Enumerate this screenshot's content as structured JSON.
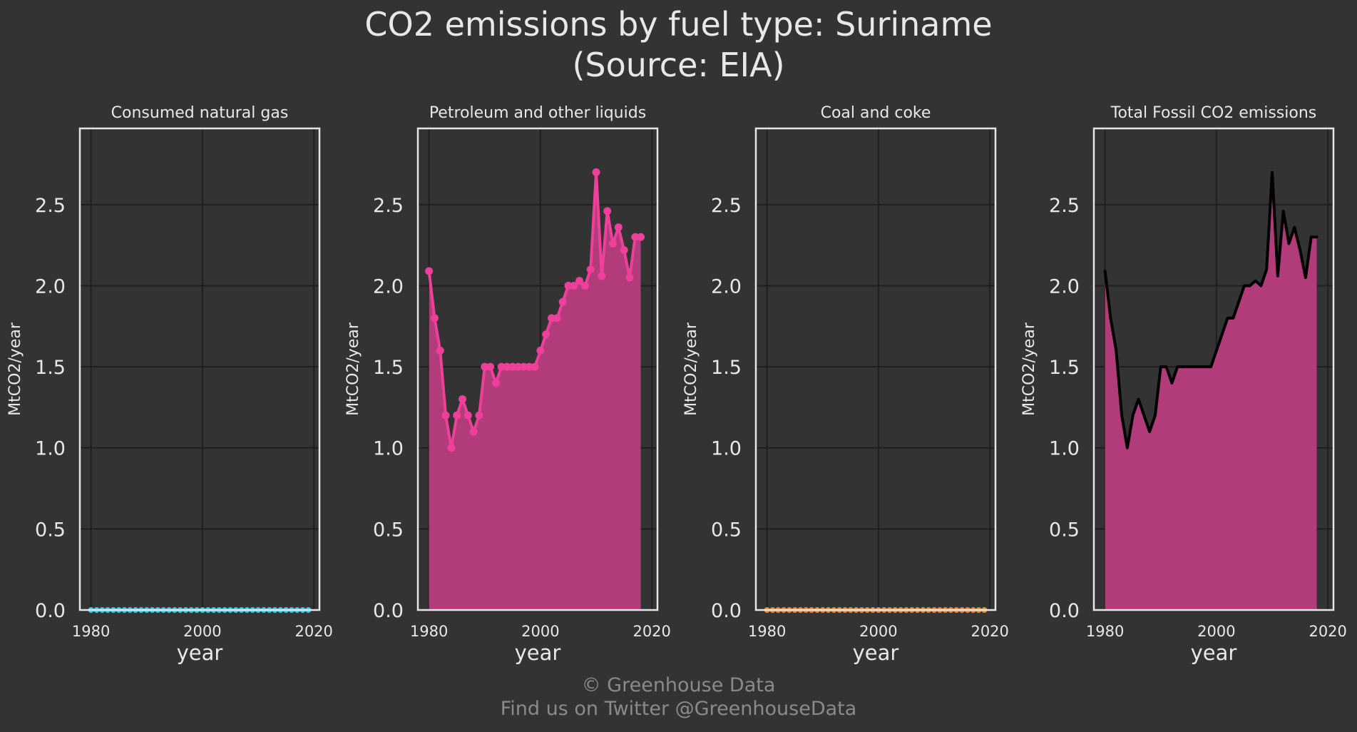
{
  "title_line1": "CO2 emissions by fuel type: Suriname",
  "title_line2": "(Source: EIA)",
  "footer_line1": "© Greenhouse Data",
  "footer_line2": "Find us on Twitter @GreenhouseData",
  "colors": {
    "background": "#333333",
    "grid": "#1f1f1f",
    "frame": "#e6e6e6",
    "text": "#e8e8e8",
    "natural_gas": "#33d1e0",
    "petroleum": "#ee3f9a",
    "petroleum_fill": "#b13c79",
    "coal": "#f08a3c",
    "total_line": "#000000",
    "total_fill": "#b13c79"
  },
  "chart_data": [
    {
      "type": "area",
      "title": "Consumed natural gas",
      "xlabel": "year",
      "ylabel": "MtCO2/year",
      "xlim": [
        1978,
        2021
      ],
      "ylim": [
        0,
        2.97
      ],
      "xticks": [
        1980,
        2000,
        2020
      ],
      "yticks": [
        0.0,
        0.5,
        1.0,
        1.5,
        2.0,
        2.5
      ],
      "grid": true,
      "markers": true,
      "x": [
        1980,
        1981,
        1982,
        1983,
        1984,
        1985,
        1986,
        1987,
        1988,
        1989,
        1990,
        1991,
        1992,
        1993,
        1994,
        1995,
        1996,
        1997,
        1998,
        1999,
        2000,
        2001,
        2002,
        2003,
        2004,
        2005,
        2006,
        2007,
        2008,
        2009,
        2010,
        2011,
        2012,
        2013,
        2014,
        2015,
        2016,
        2017,
        2018,
        2019
      ],
      "series": [
        {
          "values": [
            0,
            0,
            0,
            0,
            0,
            0,
            0,
            0,
            0,
            0,
            0,
            0,
            0,
            0,
            0,
            0,
            0,
            0,
            0,
            0,
            0,
            0,
            0,
            0,
            0,
            0,
            0,
            0,
            0,
            0,
            0,
            0,
            0,
            0,
            0,
            0,
            0,
            0,
            0,
            0
          ]
        }
      ]
    },
    {
      "type": "area",
      "title": "Petroleum and other liquids",
      "xlabel": "year",
      "ylabel": "MtCO2/year",
      "xlim": [
        1978,
        2021
      ],
      "ylim": [
        0,
        2.97
      ],
      "xticks": [
        1980,
        2000,
        2020
      ],
      "yticks": [
        0.0,
        0.5,
        1.0,
        1.5,
        2.0,
        2.5
      ],
      "grid": true,
      "markers": true,
      "x": [
        1980,
        1981,
        1982,
        1983,
        1984,
        1985,
        1986,
        1987,
        1988,
        1989,
        1990,
        1991,
        1992,
        1993,
        1994,
        1995,
        1996,
        1997,
        1998,
        1999,
        2000,
        2001,
        2002,
        2003,
        2004,
        2005,
        2006,
        2007,
        2008,
        2009,
        2010,
        2011,
        2012,
        2013,
        2014,
        2015,
        2016,
        2017,
        2018
      ],
      "series": [
        {
          "values": [
            2.09,
            1.8,
            1.6,
            1.2,
            1.0,
            1.2,
            1.3,
            1.2,
            1.1,
            1.2,
            1.5,
            1.5,
            1.4,
            1.5,
            1.5,
            1.5,
            1.5,
            1.5,
            1.5,
            1.5,
            1.6,
            1.7,
            1.8,
            1.8,
            1.9,
            2.0,
            2.0,
            2.03,
            2.0,
            2.1,
            2.7,
            2.06,
            2.46,
            2.26,
            2.36,
            2.22,
            2.05,
            2.3,
            2.3
          ]
        }
      ]
    },
    {
      "type": "area",
      "title": "Coal and coke",
      "xlabel": "year",
      "ylabel": "MtCO2/year",
      "xlim": [
        1978,
        2021
      ],
      "ylim": [
        0,
        2.97
      ],
      "xticks": [
        1980,
        2000,
        2020
      ],
      "yticks": [
        0.0,
        0.5,
        1.0,
        1.5,
        2.0,
        2.5
      ],
      "grid": true,
      "markers": true,
      "x": [
        1980,
        1981,
        1982,
        1983,
        1984,
        1985,
        1986,
        1987,
        1988,
        1989,
        1990,
        1991,
        1992,
        1993,
        1994,
        1995,
        1996,
        1997,
        1998,
        1999,
        2000,
        2001,
        2002,
        2003,
        2004,
        2005,
        2006,
        2007,
        2008,
        2009,
        2010,
        2011,
        2012,
        2013,
        2014,
        2015,
        2016,
        2017,
        2018,
        2019
      ],
      "series": [
        {
          "values": [
            0,
            0,
            0,
            0,
            0,
            0,
            0,
            0,
            0,
            0,
            0,
            0,
            0,
            0,
            0,
            0,
            0,
            0,
            0,
            0,
            0,
            0,
            0,
            0,
            0,
            0,
            0,
            0,
            0,
            0,
            0,
            0,
            0,
            0,
            0,
            0,
            0,
            0,
            0,
            0
          ]
        }
      ]
    },
    {
      "type": "area",
      "title": "Total Fossil CO2 emissions",
      "xlabel": "year",
      "ylabel": "MtCO2/year",
      "xlim": [
        1978,
        2021
      ],
      "ylim": [
        0,
        2.97
      ],
      "xticks": [
        1980,
        2000,
        2020
      ],
      "yticks": [
        0.0,
        0.5,
        1.0,
        1.5,
        2.0,
        2.5
      ],
      "grid": true,
      "markers": false,
      "x": [
        1980,
        1981,
        1982,
        1983,
        1984,
        1985,
        1986,
        1987,
        1988,
        1989,
        1990,
        1991,
        1992,
        1993,
        1994,
        1995,
        1996,
        1997,
        1998,
        1999,
        2000,
        2001,
        2002,
        2003,
        2004,
        2005,
        2006,
        2007,
        2008,
        2009,
        2010,
        2011,
        2012,
        2013,
        2014,
        2015,
        2016,
        2017,
        2018
      ],
      "series": [
        {
          "values": [
            2.09,
            1.8,
            1.6,
            1.2,
            1.0,
            1.2,
            1.3,
            1.2,
            1.1,
            1.2,
            1.5,
            1.5,
            1.4,
            1.5,
            1.5,
            1.5,
            1.5,
            1.5,
            1.5,
            1.5,
            1.6,
            1.7,
            1.8,
            1.8,
            1.9,
            2.0,
            2.0,
            2.03,
            2.0,
            2.1,
            2.7,
            2.06,
            2.46,
            2.26,
            2.36,
            2.22,
            2.05,
            2.3,
            2.3
          ]
        }
      ]
    }
  ]
}
